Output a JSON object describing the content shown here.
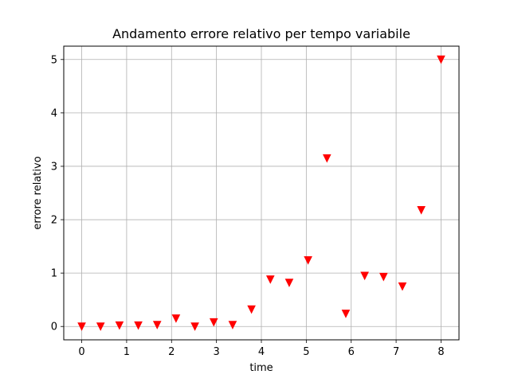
{
  "chart_data": {
    "type": "scatter",
    "title": "Andamento errore relativo per tempo variabile",
    "xlabel": "time",
    "ylabel": "errore relativo",
    "xlim": [
      -0.4,
      8.4
    ],
    "ylim": [
      -0.25,
      5.25
    ],
    "xticks": [
      0,
      1,
      2,
      3,
      4,
      5,
      6,
      7,
      8
    ],
    "yticks": [
      0,
      1,
      2,
      3,
      4,
      5
    ],
    "grid": true,
    "marker": "triangle-down",
    "color": "#ff0000",
    "series": [
      {
        "x": [
          0.0,
          0.42,
          0.84,
          1.26,
          1.68,
          2.1,
          2.52,
          2.94,
          3.36,
          3.78,
          4.2,
          4.62,
          5.04,
          5.46,
          5.88,
          6.3,
          6.72,
          7.14,
          7.56,
          8.0
        ],
        "y": [
          0.0,
          0.0,
          0.02,
          0.02,
          0.03,
          0.15,
          0.0,
          0.08,
          0.03,
          0.32,
          0.88,
          0.82,
          1.24,
          3.15,
          0.24,
          0.95,
          0.93,
          0.75,
          2.18,
          5.0
        ]
      }
    ]
  }
}
